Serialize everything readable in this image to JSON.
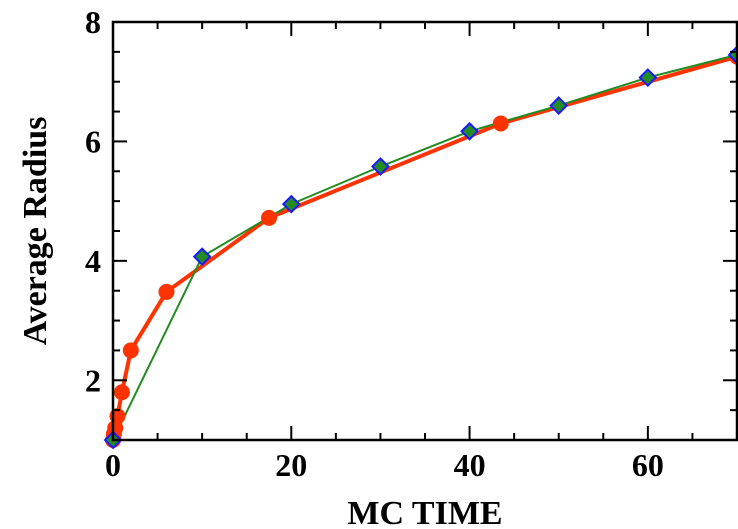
{
  "chart_data": {
    "type": "line",
    "title": "",
    "xlabel": "MC TIME",
    "ylabel": "Average Radius",
    "xlim": [
      0,
      70
    ],
    "ylim": [
      1,
      8
    ],
    "xticks": [
      0,
      20,
      40,
      60
    ],
    "yticks": [
      2,
      4,
      6,
      8
    ],
    "grid": false,
    "legend": "none",
    "series": [
      {
        "color": "#ff3300",
        "marker": "circle",
        "x": [
          0,
          0.1,
          0.25,
          0.5,
          1,
          2,
          6,
          17.5,
          43.5,
          70
        ],
        "y": [
          1.0,
          1.1,
          1.2,
          1.4,
          1.8,
          2.5,
          3.48,
          4.72,
          6.3,
          7.42
        ]
      },
      {
        "color": "#228b22",
        "marker_fill": "#228b22",
        "marker_edge": "#1a1aff",
        "marker": "diamond",
        "x": [
          0,
          10,
          20,
          30,
          40,
          50,
          60,
          70
        ],
        "y": [
          1.0,
          4.07,
          4.95,
          5.58,
          6.17,
          6.6,
          7.07,
          7.45
        ]
      }
    ]
  }
}
